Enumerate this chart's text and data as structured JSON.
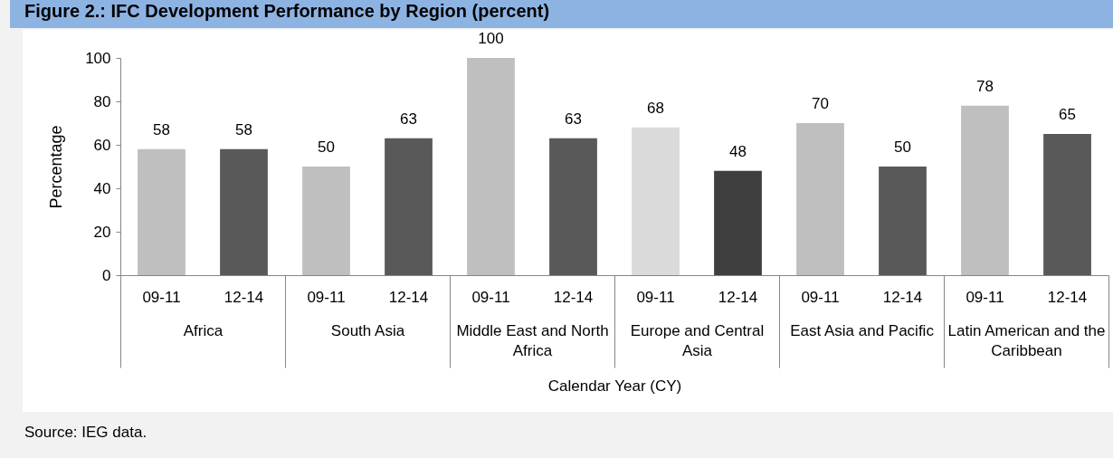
{
  "chart_data": {
    "type": "bar",
    "title": "Figure 2.: IFC Development Performance by Region (percent)",
    "xlabel": "Calendar Year (CY)",
    "ylabel": "Percentage",
    "categories": [
      "Africa",
      "South Asia",
      "Middle East and North Africa",
      "Europe and Central Asia",
      "East Asia and Pacific",
      "Latin American and the Caribbean"
    ],
    "series": [
      {
        "name": "09-11",
        "colors": [
          "#bfbfbf",
          "#bfbfbf",
          "#bfbfbf",
          "#dadada",
          "#bfbfbf",
          "#bfbfbf"
        ],
        "values": [
          58,
          50,
          100,
          68,
          70,
          78
        ]
      },
      {
        "name": "12-14",
        "colors": [
          "#595959",
          "#595959",
          "#595959",
          "#3f3f3f",
          "#595959",
          "#595959"
        ],
        "values": [
          58,
          63,
          63,
          48,
          50,
          65
        ]
      }
    ],
    "ylim": [
      0,
      100
    ],
    "yticks": [
      0,
      20,
      40,
      60,
      80,
      100
    ],
    "data_labels": true,
    "annotations": [
      "Source: IEG data."
    ]
  }
}
